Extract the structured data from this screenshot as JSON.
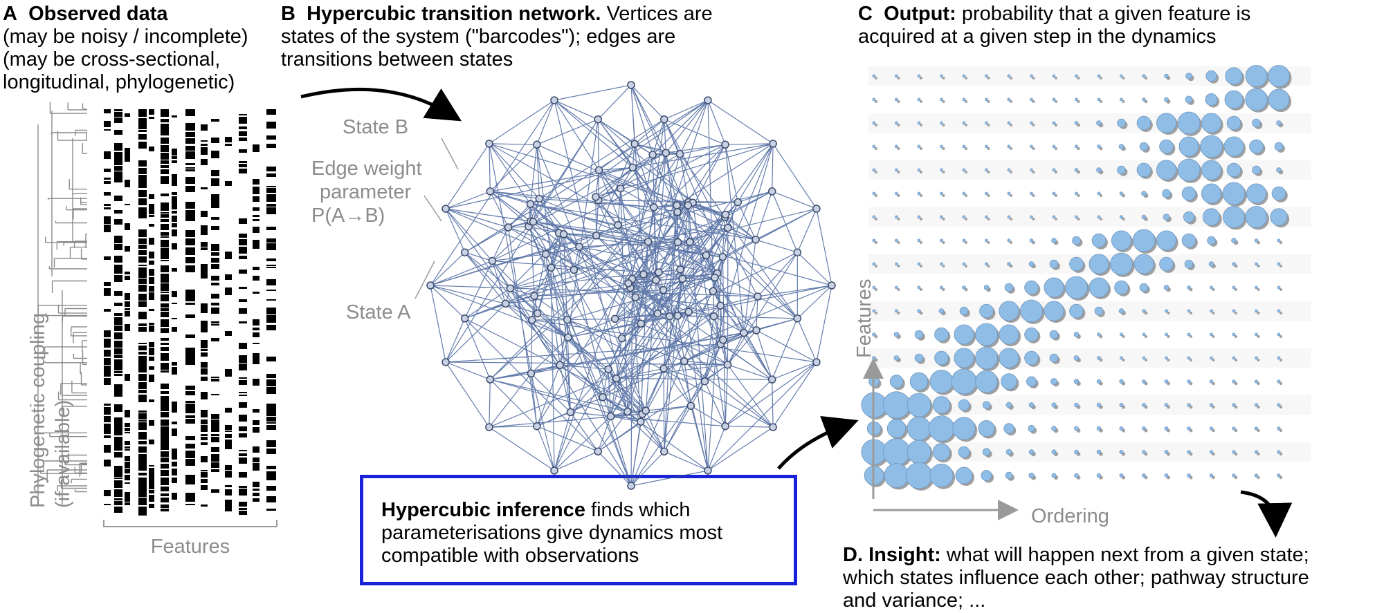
{
  "panel_a": {
    "label": "A",
    "title": "Observed data",
    "lines": [
      "(may be noisy / incomplete)",
      "(may be cross-sectional,",
      "longitudinal, phylogenetic)"
    ],
    "side_label_1": "Phylogenetic coupling",
    "side_label_2": "(if available)",
    "features_label": "Features"
  },
  "panel_b": {
    "label": "B",
    "title": "Hypercubic transition network.",
    "title_rest": "Vertices are",
    "lines": [
      "states of the system (\"barcodes\"); edges are",
      "transitions between states"
    ],
    "state_b": "State B",
    "edge_weight_lines": [
      "Edge weight",
      "parameter",
      "P(A→B)"
    ],
    "state_a": "State A"
  },
  "inference": {
    "bold": "Hypercubic inference",
    "rest": " finds which",
    "lines": [
      "parameterisations give dynamics most",
      "compatible with observations"
    ]
  },
  "panel_c": {
    "label": "C",
    "title": "Output:",
    "title_rest": "probability that a given feature is",
    "lines": [
      "acquired at a given step in the dynamics"
    ],
    "y_axis": "Features",
    "x_axis": "Ordering"
  },
  "panel_d": {
    "label": "D.",
    "title": "Insight:",
    "title_rest": "what will happen next from a given state;",
    "lines": [
      "which states influence each other; pathway structure",
      "and variance; ..."
    ]
  },
  "colors": {
    "network_edge": "#2f4f8f",
    "bubble": "#8fbde6",
    "box_border": "#1a22d8",
    "grey_text": "#8c8c8c"
  }
}
